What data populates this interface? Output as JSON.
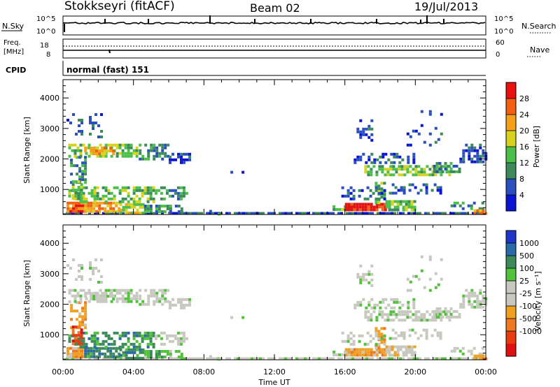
{
  "header": {
    "station": "Stokkseyri (fitACF)",
    "beam": "Beam 02",
    "date": "19/Jul/2013"
  },
  "nsky_panel": {
    "label": "N.Sky",
    "left_ticks": [
      "10^5",
      "10^0"
    ],
    "right_ticks": [
      "10^5",
      "10^0"
    ],
    "right_label": "N.Search"
  },
  "freq_panel": {
    "label_line1": "Freq.",
    "label_line2": "[MHz]",
    "left_ticks": [
      "18",
      "8"
    ],
    "right_ticks": [
      "60",
      "0"
    ],
    "right_label": "Nave"
  },
  "cpid_panel": {
    "label": "CPID",
    "mode_text": "normal (fast) 151"
  },
  "colors": {
    "power_scale": [
      "#0a14d2",
      "#2a50c0",
      "#3c8a5a",
      "#4bbf4a",
      "#d6d21e",
      "#f5a018",
      "#f26010",
      "#e81010"
    ],
    "velocity_scale": [
      "#2036c8",
      "#2a6aa8",
      "#3c8a5a",
      "#52c23c",
      "#c8c8c0",
      "#c8c8c0",
      "#f0a020",
      "#f07820",
      "#e83c10",
      "#e01010"
    ]
  },
  "chart_data": [
    {
      "type": "heatmap",
      "name": "power",
      "ylabel": "Slant Range [km]",
      "yticks": [
        "1000",
        "2000",
        "3000",
        "4000"
      ],
      "ylim": [
        180,
        4600
      ],
      "xlim": [
        0,
        24
      ],
      "xticks": [
        "00:00",
        "04:00",
        "08:00",
        "12:00",
        "16:00",
        "20:00",
        "00:00"
      ],
      "colorbar": {
        "label": "Power [dB]",
        "ticks": [
          "4",
          "8",
          "12",
          "16",
          "20",
          "24",
          "28"
        ],
        "range": [
          0,
          32
        ]
      }
    },
    {
      "type": "heatmap",
      "name": "velocity",
      "ylabel": "Slant Range [km]",
      "yticks": [
        "1000",
        "2000",
        "3000",
        "4000"
      ],
      "ylim": [
        180,
        4600
      ],
      "xlim": [
        0,
        24
      ],
      "xticks": [
        "00:00",
        "04:00",
        "08:00",
        "12:00",
        "16:00",
        "20:00",
        "00:00"
      ],
      "xlabel": "Time UT",
      "colorbar": {
        "label": "Velocity [m s⁻¹]",
        "ticks": [
          "1000",
          "500",
          "100",
          "25",
          "-25",
          "-100",
          "-500",
          "-1000"
        ]
      }
    }
  ]
}
